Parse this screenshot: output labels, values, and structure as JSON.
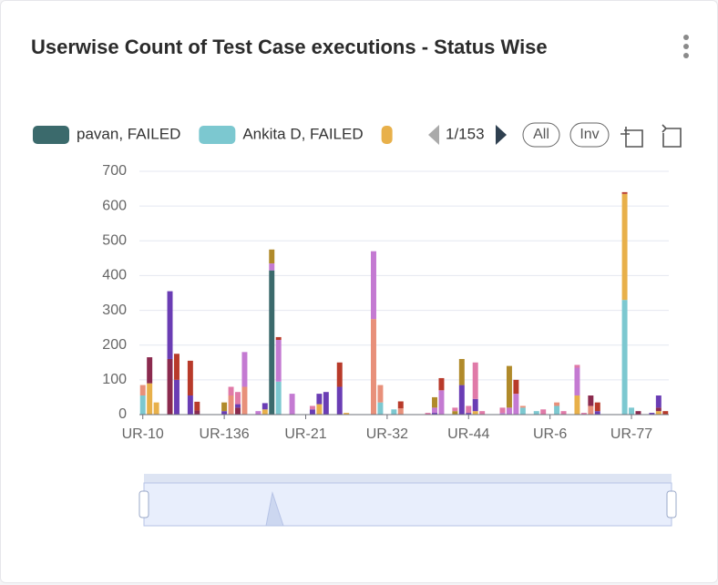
{
  "chart_data": {
    "type": "stacked-bar",
    "title": "Userwise Count of Test Case executions - Status Wise",
    "legend_page": "1/153",
    "legend_buttons": [
      "All",
      "Inv"
    ],
    "categories": [
      "UR-10",
      null,
      null,
      null,
      null,
      null,
      null,
      null,
      null,
      null,
      null,
      null,
      "UR-136",
      null,
      null,
      null,
      null,
      null,
      null,
      null,
      null,
      null,
      null,
      null,
      "UR-21",
      null,
      null,
      null,
      null,
      null,
      null,
      null,
      null,
      null,
      null,
      null,
      "UR-32",
      null,
      null,
      null,
      null,
      null,
      null,
      null,
      null,
      null,
      null,
      null,
      "UR-44",
      null,
      null,
      null,
      null,
      null,
      null,
      null,
      null,
      null,
      null,
      null,
      "UR-6",
      null,
      null,
      null,
      null,
      null,
      null,
      null,
      null,
      null,
      null,
      null,
      "UR-77",
      null,
      null,
      null,
      null,
      null
    ],
    "ylim": [
      0,
      700
    ],
    "yticks": [
      0,
      100,
      200,
      300,
      400,
      500,
      600,
      700
    ],
    "grid": true,
    "series": [
      {
        "name": "pavan, FAILED",
        "color": "#3b6a6c",
        "values": [
          0,
          0,
          0,
          0,
          0,
          0,
          0,
          0,
          0,
          0,
          0,
          0,
          0,
          0,
          0,
          0,
          0,
          0,
          0,
          415,
          0,
          0,
          0,
          0,
          0,
          0,
          0,
          0,
          0,
          0,
          0,
          0,
          0,
          0,
          0,
          0,
          0,
          0,
          0,
          0,
          0,
          0,
          0,
          0,
          0,
          0,
          0,
          0,
          0,
          0,
          0,
          0,
          0,
          0,
          0,
          0,
          0,
          0,
          0,
          0,
          0,
          0,
          0,
          0,
          0,
          0,
          0,
          0,
          0,
          0,
          0,
          0,
          0,
          0,
          0,
          0,
          0,
          0
        ]
      },
      {
        "name": "Ankita D, FAILED",
        "color": "#7cc8d0",
        "values": [
          55,
          0,
          0,
          0,
          0,
          0,
          0,
          0,
          0,
          0,
          0,
          0,
          0,
          0,
          0,
          0,
          0,
          0,
          0,
          0,
          95,
          0,
          0,
          0,
          0,
          0,
          0,
          0,
          0,
          0,
          0,
          0,
          0,
          0,
          0,
          35,
          0,
          15,
          0,
          0,
          0,
          0,
          0,
          0,
          0,
          0,
          0,
          0,
          0,
          0,
          0,
          0,
          0,
          0,
          0,
          0,
          20,
          0,
          10,
          0,
          0,
          25,
          0,
          0,
          0,
          0,
          0,
          0,
          0,
          0,
          0,
          330,
          20,
          0,
          0,
          0,
          0,
          0
        ]
      },
      {
        "color": "#e8b04a",
        "values": [
          0,
          90,
          35,
          0,
          0,
          0,
          0,
          0,
          0,
          0,
          0,
          0,
          0,
          0,
          0,
          0,
          0,
          0,
          15,
          0,
          0,
          0,
          0,
          0,
          0,
          0,
          30,
          0,
          0,
          0,
          5,
          0,
          0,
          0,
          0,
          0,
          0,
          0,
          0,
          0,
          0,
          0,
          0,
          0,
          0,
          0,
          0,
          0,
          0,
          10,
          0,
          0,
          0,
          0,
          0,
          0,
          0,
          0,
          0,
          0,
          0,
          0,
          0,
          0,
          55,
          0,
          0,
          0,
          0,
          0,
          0,
          305,
          0,
          0,
          0,
          0,
          10,
          0
        ]
      },
      {
        "color": "#e8907a",
        "values": [
          30,
          0,
          0,
          0,
          0,
          0,
          0,
          0,
          0,
          0,
          0,
          0,
          0,
          55,
          0,
          80,
          0,
          0,
          0,
          0,
          0,
          0,
          0,
          0,
          0,
          0,
          0,
          0,
          0,
          0,
          0,
          0,
          0,
          0,
          275,
          50,
          0,
          0,
          18,
          0,
          0,
          0,
          0,
          0,
          0,
          0,
          0,
          0,
          0,
          0,
          0,
          0,
          0,
          0,
          0,
          0,
          5,
          0,
          0,
          0,
          0,
          10,
          0,
          0,
          0,
          0,
          25,
          0,
          0,
          0,
          0,
          0,
          0,
          0,
          0,
          0,
          0,
          0
        ]
      },
      {
        "color": "#8b2a4e",
        "values": [
          0,
          75,
          0,
          0,
          160,
          0,
          0,
          0,
          12,
          0,
          0,
          0,
          0,
          0,
          20,
          0,
          0,
          0,
          0,
          0,
          0,
          0,
          0,
          0,
          0,
          0,
          0,
          0,
          0,
          0,
          0,
          0,
          0,
          0,
          0,
          0,
          0,
          0,
          0,
          0,
          0,
          0,
          0,
          0,
          0,
          0,
          0,
          0,
          0,
          0,
          0,
          0,
          0,
          0,
          0,
          0,
          0,
          0,
          0,
          0,
          0,
          0,
          0,
          0,
          0,
          0,
          30,
          0,
          0,
          0,
          0,
          0,
          0,
          10,
          0,
          0,
          10,
          0
        ]
      },
      {
        "color": "#6a3db4",
        "values": [
          0,
          0,
          0,
          0,
          195,
          100,
          0,
          55,
          0,
          0,
          0,
          0,
          10,
          0,
          10,
          0,
          0,
          0,
          18,
          0,
          0,
          0,
          0,
          0,
          0,
          15,
          30,
          65,
          0,
          80,
          0,
          0,
          0,
          0,
          0,
          0,
          0,
          0,
          0,
          0,
          0,
          0,
          0,
          5,
          0,
          0,
          0,
          85,
          5,
          35,
          0,
          0,
          0,
          0,
          0,
          0,
          0,
          0,
          0,
          0,
          0,
          0,
          0,
          0,
          0,
          0,
          0,
          10,
          0,
          0,
          0,
          0,
          0,
          0,
          0,
          5,
          35,
          0
        ]
      },
      {
        "color": "#c47ad2",
        "values": [
          0,
          0,
          0,
          0,
          0,
          0,
          0,
          0,
          0,
          0,
          0,
          0,
          0,
          0,
          0,
          100,
          0,
          10,
          0,
          20,
          120,
          0,
          60,
          0,
          0,
          0,
          0,
          0,
          0,
          0,
          0,
          0,
          0,
          0,
          195,
          0,
          0,
          0,
          0,
          0,
          0,
          0,
          0,
          15,
          70,
          0,
          0,
          0,
          0,
          0,
          0,
          0,
          0,
          5,
          20,
          60,
          0,
          0,
          0,
          0,
          0,
          0,
          0,
          0,
          80,
          0,
          0,
          0,
          0,
          0,
          0,
          0,
          0,
          0,
          0,
          0,
          0,
          0
        ]
      },
      {
        "color": "#b83a2a",
        "values": [
          0,
          0,
          0,
          0,
          0,
          75,
          0,
          100,
          25,
          0,
          0,
          0,
          0,
          0,
          0,
          0,
          0,
          0,
          0,
          0,
          8,
          0,
          0,
          0,
          0,
          0,
          0,
          0,
          0,
          70,
          0,
          0,
          0,
          0,
          0,
          0,
          0,
          0,
          20,
          0,
          0,
          0,
          0,
          0,
          35,
          0,
          0,
          0,
          0,
          0,
          0,
          0,
          0,
          0,
          0,
          40,
          0,
          0,
          0,
          0,
          0,
          0,
          0,
          0,
          0,
          0,
          0,
          25,
          0,
          0,
          0,
          5,
          0,
          0,
          0,
          0,
          0,
          10
        ]
      },
      {
        "color": "#b08a2a",
        "values": [
          0,
          0,
          0,
          0,
          0,
          0,
          0,
          0,
          0,
          0,
          0,
          0,
          25,
          0,
          0,
          0,
          0,
          0,
          0,
          40,
          0,
          0,
          0,
          0,
          0,
          0,
          0,
          0,
          0,
          0,
          0,
          0,
          0,
          0,
          0,
          0,
          0,
          0,
          0,
          0,
          0,
          0,
          0,
          30,
          0,
          0,
          10,
          75,
          0,
          0,
          0,
          0,
          0,
          0,
          120,
          0,
          0,
          0,
          0,
          0,
          0,
          0,
          0,
          0,
          0,
          0,
          0,
          0,
          0,
          0,
          0,
          0,
          0,
          0,
          0,
          0,
          0,
          0
        ]
      },
      {
        "color": "#e07aa8",
        "values": [
          0,
          0,
          0,
          0,
          0,
          0,
          0,
          0,
          0,
          0,
          0,
          0,
          0,
          25,
          35,
          0,
          0,
          0,
          0,
          0,
          0,
          0,
          0,
          0,
          0,
          10,
          0,
          0,
          0,
          0,
          0,
          0,
          0,
          0,
          0,
          0,
          0,
          0,
          0,
          0,
          0,
          0,
          5,
          0,
          0,
          0,
          10,
          0,
          20,
          105,
          10,
          0,
          0,
          15,
          0,
          0,
          0,
          0,
          0,
          15,
          0,
          0,
          10,
          0,
          8,
          5,
          0,
          0,
          0,
          0,
          0,
          0,
          0,
          0,
          0,
          0,
          0,
          0
        ]
      }
    ]
  }
}
